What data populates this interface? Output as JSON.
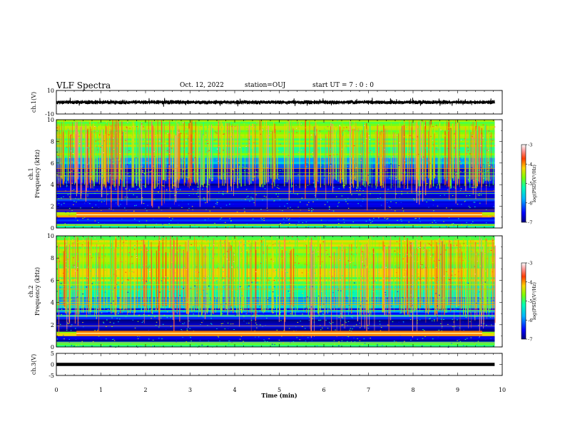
{
  "header": {
    "title": "VLF Spectra",
    "date": "Oct. 12, 2022",
    "station": "station=OUJ",
    "start": "start UT =  7 : 0  : 0"
  },
  "chart_data": [
    {
      "type": "line",
      "name_label": "ch.1(V)",
      "ylabel": "ch.1(V)",
      "ylim": [
        -10,
        10
      ],
      "ytick_labels": [
        "10",
        "-10"
      ],
      "xlim": [
        0,
        10
      ],
      "data_xmax": 9.83,
      "series": [
        {
          "x_start": 0,
          "x_end": 9.83,
          "center": 0,
          "amplitude_typical": 1.2
        }
      ]
    },
    {
      "type": "heatmap",
      "panel_id": "ch1",
      "ylabel": "ch.1  Frequency  (kHz)",
      "ylim": [
        0,
        10
      ],
      "ytick_labels": [
        "0",
        "2",
        "4",
        "6",
        "8",
        "10"
      ],
      "xlim": [
        0,
        10
      ],
      "data_xmax": 9.83,
      "colorbar": {
        "label": "log(PSD)(V²/Hz)",
        "range": [
          -7,
          -3
        ],
        "tick_labels": [
          "-3",
          "-4",
          "-5",
          "-6",
          "-7"
        ]
      },
      "bands": [
        {
          "freq": [
            0.0,
            0.4
          ],
          "level": -5.3
        },
        {
          "freq": [
            0.4,
            1.0
          ],
          "level": -6.7
        },
        {
          "freq": [
            1.0,
            1.5
          ],
          "level": -4.6
        },
        {
          "freq": [
            1.5,
            2.5
          ],
          "level": -6.8
        },
        {
          "freq": [
            2.5,
            3.5
          ],
          "level": -6.5
        },
        {
          "freq": [
            3.5,
            4.5
          ],
          "level": -6.7
        },
        {
          "freq": [
            4.5,
            5.5
          ],
          "level": -6.6
        },
        {
          "freq": [
            5.5,
            6.5
          ],
          "level": -6.0
        },
        {
          "freq": [
            6.5,
            7.5
          ],
          "level": -5.3
        },
        {
          "freq": [
            7.5,
            10.0
          ],
          "level": -5.0
        }
      ],
      "tone_lines_khz": [
        0.25,
        1.2,
        1.4,
        1.65,
        2.7,
        3.2,
        3.4,
        4.8,
        5.1,
        5.5
      ]
    },
    {
      "type": "heatmap",
      "panel_id": "ch2",
      "ylabel": "ch.2  Frequency  (kHz)",
      "ylim": [
        0,
        10
      ],
      "ytick_labels": [
        "0",
        "2",
        "4",
        "6",
        "8",
        "10"
      ],
      "xlim": [
        0,
        10
      ],
      "data_xmax": 9.83,
      "colorbar": {
        "label": "log(PSD)(V²/Hz)",
        "range": [
          -7,
          -3
        ],
        "tick_labels": [
          "-3",
          "-4",
          "-5",
          "-6",
          "-7"
        ]
      },
      "bands": [
        {
          "freq": [
            0.0,
            0.5
          ],
          "level": -5.4
        },
        {
          "freq": [
            0.5,
            1.0
          ],
          "level": -6.8
        },
        {
          "freq": [
            1.0,
            1.4
          ],
          "level": -4.5
        },
        {
          "freq": [
            1.4,
            2.5
          ],
          "level": -6.7
        },
        {
          "freq": [
            2.5,
            3.5
          ],
          "level": -6.3
        },
        {
          "freq": [
            3.5,
            4.5
          ],
          "level": -6.0
        },
        {
          "freq": [
            4.5,
            5.5
          ],
          "level": -5.6
        },
        {
          "freq": [
            5.5,
            10.0
          ],
          "level": -4.9
        }
      ],
      "tone_lines_khz": [
        0.4,
        1.1,
        1.3,
        1.9,
        2.8,
        3.3,
        3.8,
        4.0,
        4.3,
        5.2,
        5.6
      ]
    },
    {
      "type": "line",
      "ylabel": "ch.3(V)",
      "ylim": [
        -5,
        5
      ],
      "ytick_labels": [
        "5",
        "0",
        "-5"
      ],
      "xlim": [
        0,
        10
      ],
      "data_xmax": 9.83,
      "series": [
        {
          "x_start": 0,
          "x_end": 9.83,
          "value": 0
        }
      ]
    }
  ],
  "xaxis": {
    "label": "Time  (min)",
    "tick_labels": [
      "0",
      "1",
      "2",
      "3",
      "4",
      "5",
      "6",
      "7",
      "8",
      "9",
      "10"
    ]
  },
  "colors": {
    "cmap": [
      "#00007f",
      "#0000ff",
      "#00b4ff",
      "#00ffb4",
      "#7fff00",
      "#ffd400",
      "#ff3c00",
      "#ff9999",
      "#ffffff"
    ]
  }
}
